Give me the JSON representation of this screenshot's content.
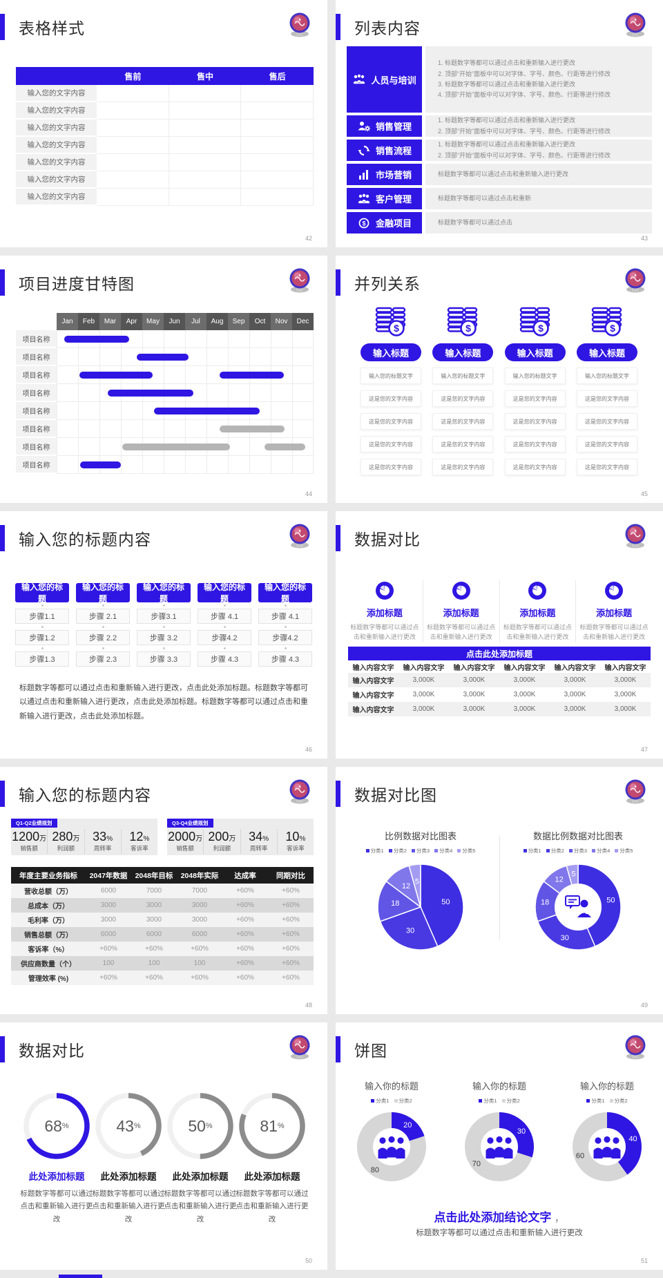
{
  "page": {
    "bg": "#e9e9e9",
    "card_bg": "#ffffff",
    "accent": "#2f16e2",
    "gray_bar": "#b5b5b5"
  },
  "slides": {
    "s42": {
      "page_no": "42",
      "title": "表格样式",
      "table": {
        "col_headers": [
          "售前",
          "售中",
          "售后"
        ],
        "row_label": "输入您的文字内容",
        "row_count": 7
      }
    },
    "s43": {
      "page_no": "43",
      "title": "列表内容",
      "items": [
        {
          "label": "人员与培训",
          "icon": "team-icon",
          "numbered": true,
          "lines": [
            "标题数字等都可以通过点击和重新输入进行更改",
            "顶部“开始”面板中可以对字体、字号、颜色、行距等进行修改",
            "标题数字等都可以通过点击和重新输入进行更改",
            "顶部“开始”面板中可以对字体、字号、颜色、行距等进行修改"
          ]
        },
        {
          "label": "销售管理",
          "icon": "person-gear-icon",
          "numbered": true,
          "lines": [
            "标题数字等都可以通过点击和重新输入进行更改",
            "顶部“开始”面板中可以对字体、字号、颜色、行距等进行修改"
          ]
        },
        {
          "label": "销售流程",
          "icon": "cycle-icon",
          "numbered": true,
          "lines": [
            "标题数字等都可以通过点击和重新输入进行更改",
            "顶部“开始”面板中可以对字体、字号、颜色、行距等进行修改"
          ]
        },
        {
          "label": "市场营销",
          "icon": "bar-chart-icon",
          "numbered": false,
          "lines": [
            "标题数字等都可以通过点击和重新输入进行更改"
          ]
        },
        {
          "label": "客户管理",
          "icon": "people-icon",
          "numbered": false,
          "lines": [
            "标题数字等都可以通过点击和重新"
          ]
        },
        {
          "label": "金融项目",
          "icon": "finance-icon",
          "numbered": false,
          "lines": [
            "标题数字等都可以通过点击"
          ]
        }
      ]
    },
    "s44": {
      "page_no": "44",
      "title": "项目进度甘特图"
    },
    "s45": {
      "page_no": "45",
      "title": "并列关系",
      "column_count": 4,
      "button_label": "输入标题",
      "cells": [
        "输入您的标题文字",
        "这是您的文字内容",
        "这是您的文字内容",
        "这是您的文字内容",
        "这是您的文字内容"
      ]
    },
    "s46": {
      "page_no": "46",
      "title": "输入您的标题内容",
      "header_button": "输入您的标题",
      "step_columns": [
        [
          "步骤1.1",
          "步骤1.2",
          "步骤1.3"
        ],
        [
          "步骤 2.1",
          "步骤 2.2",
          "步骤 2.3"
        ],
        [
          "步骤3.1",
          "步骤 3.2",
          "步骤 3.3"
        ],
        [
          "步骤 4.1",
          "步骤4.2",
          "步骤 4.3"
        ],
        [
          "步骤 4.1",
          "步骤4.2",
          "步骤 4.3"
        ]
      ],
      "paragraph": "标题数字等都可以通过点击和重新输入进行更改，点击此处添加标题。标题数字等都可以通过点击和重新输入进行更改，点击此处添加标题。标题数字等都可以通过点击和重新输入进行更改，点击此处添加标题。"
    },
    "s47": {
      "page_no": "47",
      "title": "数据对比",
      "feature_title": "添加标题",
      "feature_desc": "标题数字等都可以通过点击和重新输入进行更改",
      "feature_count": 4,
      "bar_title": "点击此处添加标题",
      "table": {
        "col_header": "输入内容文字",
        "row_label": "输入内容文字",
        "value": "3,000K",
        "rows": 3,
        "cols": 6
      }
    },
    "s48": {
      "page_no": "48",
      "title": "输入您的标题内容",
      "panels": [
        {
          "tag": "Q1-Q2业绩规划",
          "stats": [
            {
              "value": "1200",
              "unit": "万",
              "label": "销售额"
            },
            {
              "value": "280",
              "unit": "万",
              "label": "利润额"
            },
            {
              "value": "33",
              "unit": "%",
              "label": "周转率"
            },
            {
              "value": "12",
              "unit": "%",
              "label": "客诉率"
            }
          ]
        },
        {
          "tag": "Q3-Q4业绩规划",
          "stats": [
            {
              "value": "2000",
              "unit": "万",
              "label": "销售额"
            },
            {
              "value": "200",
              "unit": "万",
              "label": "利润额"
            },
            {
              "value": "34",
              "unit": "%",
              "label": "周转率"
            },
            {
              "value": "10",
              "unit": "%",
              "label": "客诉率"
            }
          ]
        }
      ]
    },
    "s49": {
      "page_no": "49",
      "title": "数据对比图"
    },
    "s50": {
      "page_no": "50",
      "title": "数据对比"
    },
    "s51": {
      "page_no": "51",
      "title": "饼图",
      "conclusion_title": "点击此处添加结论文字",
      "conclusion_comma": "，",
      "conclusion_desc": "标题数字等都可以通过点击和重新输入进行更改"
    }
  },
  "chart_data": [
    {
      "type": "gantt",
      "slide": "44",
      "months": [
        "Jan",
        "Feb",
        "Mar",
        "Apr",
        "May",
        "Jun",
        "Jul",
        "Aug",
        "Sep",
        "Oct",
        "Nov",
        "Dec"
      ],
      "row_label": "项目名称",
      "row_count": 8,
      "bars": [
        {
          "row": 0,
          "start": 0.35,
          "end": 3.4,
          "color": "blue"
        },
        {
          "row": 1,
          "start": 3.75,
          "end": 6.15,
          "color": "blue"
        },
        {
          "row": 2,
          "start": 1.05,
          "end": 4.5,
          "color": "blue"
        },
        {
          "row": 2,
          "start": 7.6,
          "end": 10.6,
          "color": "blue"
        },
        {
          "row": 3,
          "start": 2.4,
          "end": 6.4,
          "color": "blue"
        },
        {
          "row": 4,
          "start": 4.55,
          "end": 9.5,
          "color": "blue"
        },
        {
          "row": 5,
          "start": 7.6,
          "end": 10.65,
          "color": "gray"
        },
        {
          "row": 6,
          "start": 3.05,
          "end": 8.1,
          "color": "gray"
        },
        {
          "row": 6,
          "start": 9.7,
          "end": 11.6,
          "color": "gray"
        },
        {
          "row": 7,
          "start": 1.1,
          "end": 3.0,
          "color": "blue"
        }
      ]
    },
    {
      "type": "table",
      "slide": "48",
      "columns": [
        "年度主要业务指标",
        "2047年数据",
        "2048年目标",
        "2048年实际",
        "达成率",
        "同期对比"
      ],
      "rows": [
        [
          "营收总额（万）",
          "6000",
          "7000",
          "7000",
          "+60%",
          "+60%"
        ],
        [
          "总成本（万）",
          "3000",
          "3000",
          "3000",
          "+60%",
          "+60%"
        ],
        [
          "毛利率（万）",
          "3000",
          "3000",
          "3000",
          "+60%",
          "+60%"
        ],
        [
          "销售总额（万）",
          "6000",
          "6000",
          "6000",
          "+60%",
          "+60%"
        ],
        [
          "客诉率（%）",
          "+60%",
          "+60%",
          "+60%",
          "+60%",
          "+60%"
        ],
        [
          "供应商数量（个）",
          "100",
          "100",
          "100",
          "+60%",
          "+60%"
        ],
        [
          "管理效率 (%)",
          "+60%",
          "+60%",
          "+60%",
          "+60%",
          "+60%"
        ]
      ]
    },
    {
      "type": "pie",
      "slide": "49",
      "title": "比例数据对比图表",
      "legend": [
        "分类1",
        "分类2",
        "分类3",
        "分类4",
        "分类5"
      ],
      "values": [
        50,
        30,
        18,
        12,
        5
      ],
      "colors": [
        "#3e2ee1",
        "#4939e3",
        "#6155e6",
        "#8077eb",
        "#a49cf1"
      ]
    },
    {
      "type": "donut",
      "slide": "49",
      "title": "数据比例数据对比图表",
      "legend": [
        "分类1",
        "分类2",
        "分类3",
        "分类4",
        "分类5"
      ],
      "values": [
        50,
        30,
        18,
        12,
        5
      ],
      "colors": [
        "#3e2ee1",
        "#4939e3",
        "#6155e6",
        "#8077eb",
        "#a49cf1"
      ],
      "center_icon": "person-speech-icon"
    },
    {
      "type": "donut-progress",
      "slide": "50",
      "values": [
        68,
        43,
        50,
        81
      ],
      "item_title": "此处添加标题",
      "item_desc": "标题数字等都可以通过点击和重新输入进行更改",
      "highlight_index": 0,
      "highlight_color": "#2f16e2",
      "normal_color": "#8c8c8c"
    },
    {
      "type": "donut",
      "slide": "51",
      "title": "输入你的标题",
      "legend": [
        "分类1",
        "分类2"
      ],
      "values": [
        20,
        80
      ],
      "colors": [
        "#2f16e2",
        "#d6d6d6"
      ],
      "center_icon": "people-group-icon"
    },
    {
      "type": "donut",
      "slide": "51",
      "title": "输入你的标题",
      "legend": [
        "分类1",
        "分类2"
      ],
      "values": [
        30,
        70
      ],
      "colors": [
        "#2f16e2",
        "#d6d6d6"
      ],
      "center_icon": "people-group-icon"
    },
    {
      "type": "donut",
      "slide": "51",
      "title": "输入你的标题",
      "legend": [
        "分类1",
        "分类2"
      ],
      "values": [
        40,
        60
      ],
      "colors": [
        "#2f16e2",
        "#d6d6d6"
      ],
      "center_icon": "people-group-icon"
    }
  ]
}
